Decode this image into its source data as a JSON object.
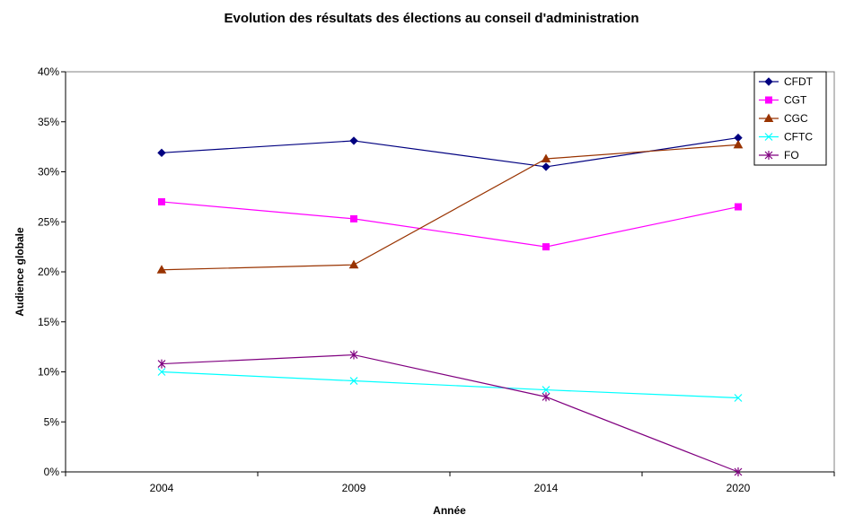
{
  "chart_data": {
    "type": "line",
    "title": "Evolution des résultats des élections au conseil d'administration",
    "xlabel": "Année",
    "ylabel": "Audience globale",
    "categories": [
      "2004",
      "2009",
      "2014",
      "2020"
    ],
    "ylim": [
      0,
      0.4
    ],
    "yticks": [
      0,
      0.05,
      0.1,
      0.15,
      0.2,
      0.25,
      0.3,
      0.35,
      0.4
    ],
    "ytick_labels": [
      "0%",
      "5%",
      "10%",
      "15%",
      "20%",
      "25%",
      "30%",
      "35%",
      "40%"
    ],
    "grid": false,
    "legend_position": "top-right",
    "series": [
      {
        "name": "CFDT",
        "color": "#000080",
        "marker": "diamond",
        "values": [
          0.319,
          0.331,
          0.305,
          0.334
        ]
      },
      {
        "name": "CGT",
        "color": "#FF00FF",
        "marker": "square",
        "values": [
          0.27,
          0.253,
          0.225,
          0.265
        ]
      },
      {
        "name": "CGC",
        "color": "#993300",
        "marker": "triangle",
        "values": [
          0.202,
          0.207,
          0.313,
          0.327
        ]
      },
      {
        "name": "CFTC",
        "color": "#00FFFF",
        "marker": "x",
        "values": [
          0.1,
          0.091,
          0.082,
          0.074
        ]
      },
      {
        "name": "FO",
        "color": "#800080",
        "marker": "star",
        "values": [
          0.108,
          0.117,
          0.075,
          0.0
        ]
      }
    ]
  }
}
